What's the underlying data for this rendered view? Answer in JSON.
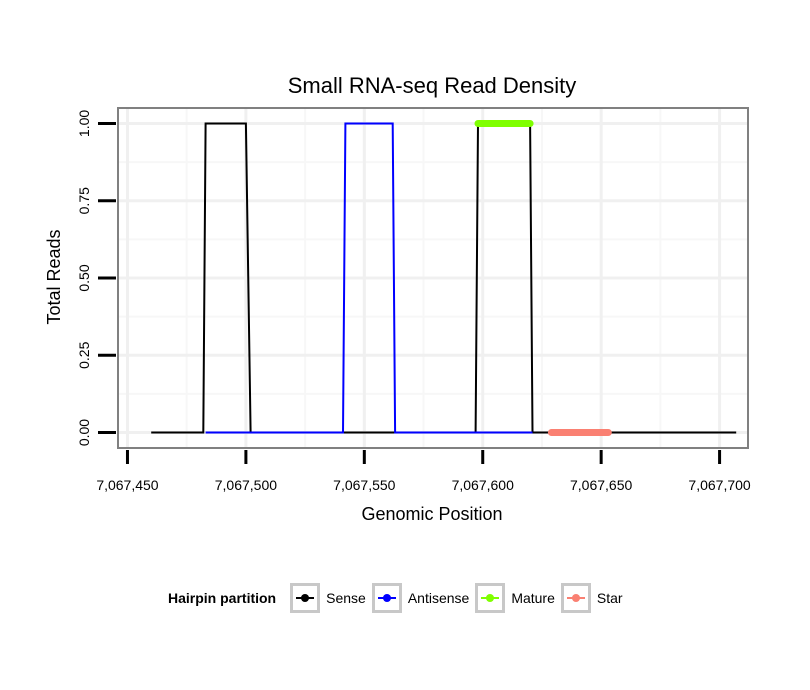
{
  "chart_data": {
    "type": "line",
    "title": "Small RNA-seq Read Density",
    "xlabel": "Genomic Position",
    "ylabel": "Total Reads",
    "xlim": [
      7067446,
      7067712
    ],
    "ylim": [
      -0.05,
      1.05
    ],
    "x_ticks": [
      7067450,
      7067500,
      7067550,
      7067600,
      7067650,
      7067700
    ],
    "x_tick_labels": [
      "7,067,450",
      "7,067,500",
      "7,067,550",
      "7,067,600",
      "7,067,650",
      "7,067,700"
    ],
    "y_ticks": [
      0,
      0.25,
      0.5,
      0.75,
      1.0
    ],
    "y_tick_labels": [
      "0.00",
      "0.25",
      "0.50",
      "0.75",
      "1.00"
    ],
    "grid": true,
    "series": [
      {
        "name": "Sense",
        "color": "#000000",
        "points": [
          [
            7067460,
            0
          ],
          [
            7067482,
            0
          ],
          [
            7067483,
            1
          ],
          [
            7067500,
            1
          ],
          [
            7067502,
            0
          ],
          [
            7067597,
            0
          ],
          [
            7067598,
            1
          ],
          [
            7067620,
            1
          ],
          [
            7067621,
            0
          ],
          [
            7067707,
            0
          ]
        ]
      },
      {
        "name": "Antisense",
        "color": "#0000ff",
        "points": [
          [
            7067483,
            0
          ],
          [
            7067541,
            0
          ],
          [
            7067542,
            1
          ],
          [
            7067562,
            1
          ],
          [
            7067563,
            0
          ],
          [
            7067621,
            0
          ]
        ]
      },
      {
        "name": "Mature",
        "color": "#7fff00",
        "points": [
          [
            7067598,
            1
          ],
          [
            7067620,
            1
          ]
        ]
      },
      {
        "name": "Star",
        "color": "#fa8072",
        "points": [
          [
            7067629,
            0
          ],
          [
            7067653,
            0
          ]
        ]
      }
    ],
    "legend": {
      "title": "Hairpin partition",
      "position": "bottom",
      "items": [
        {
          "label": "Sense",
          "color": "#000000"
        },
        {
          "label": "Antisense",
          "color": "#0000ff"
        },
        {
          "label": "Mature",
          "color": "#7fff00"
        },
        {
          "label": "Star",
          "color": "#fa8072"
        }
      ]
    }
  }
}
